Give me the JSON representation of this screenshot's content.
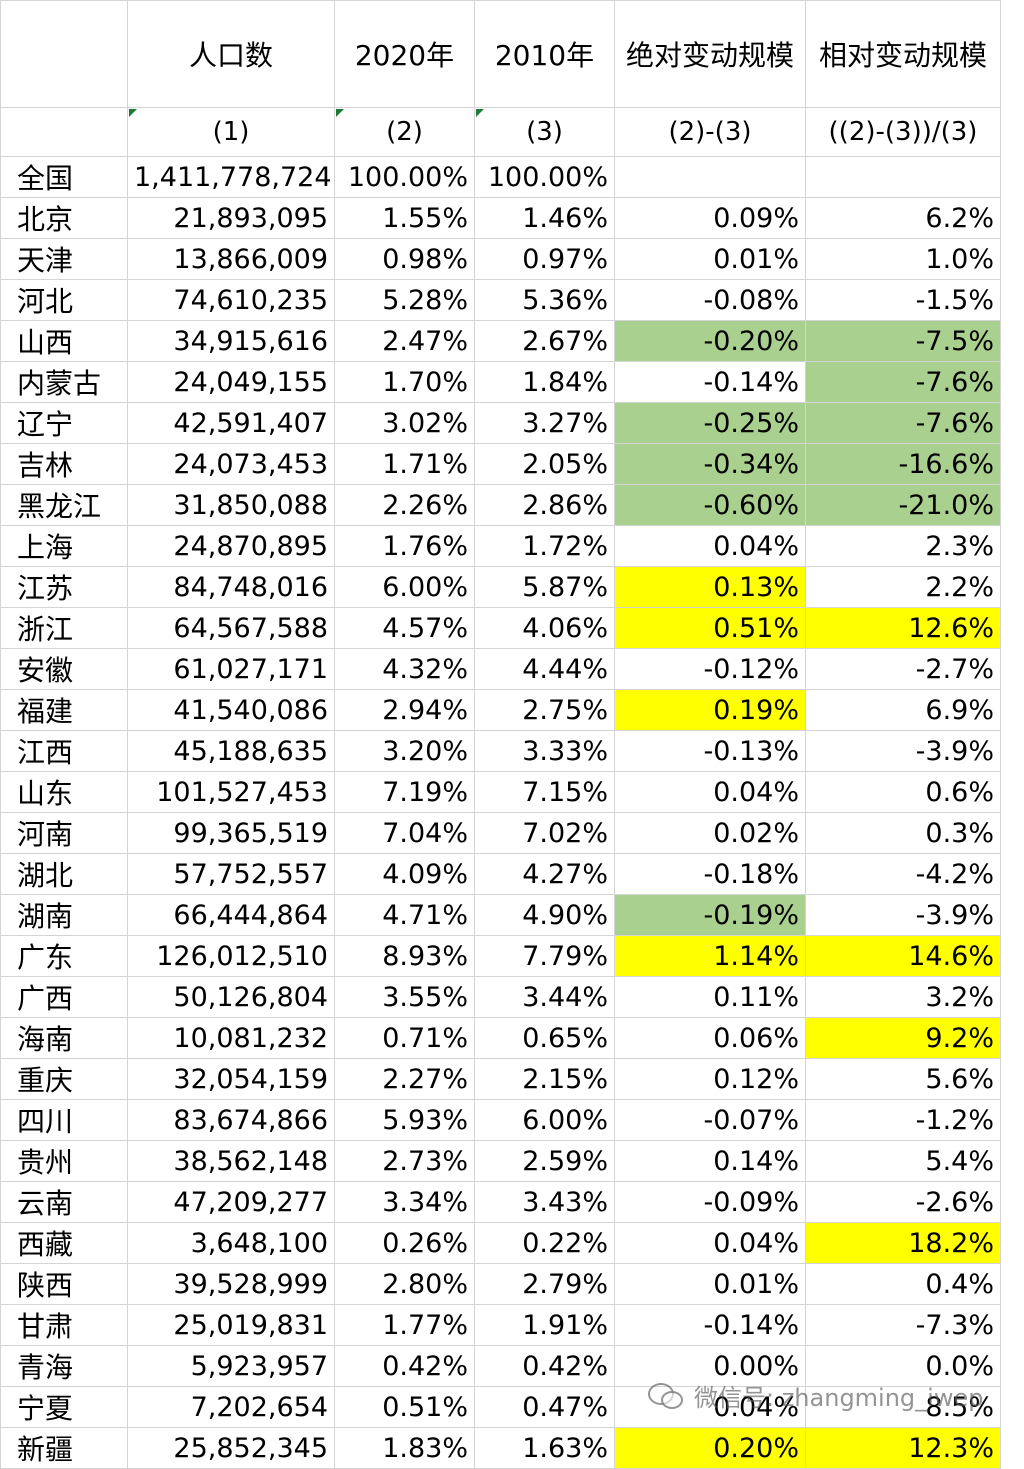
{
  "headers": {
    "titles": [
      "",
      "人口数",
      "2020年",
      "2010年",
      "绝对变动规模",
      "相对变动规模"
    ],
    "subs": [
      "",
      "(1)",
      "(2)",
      "(3)",
      "(2)-(3)",
      "((2)-(3))/(3)"
    ]
  },
  "colors": {
    "green": "#a9d08e",
    "yellow": "#ffff00",
    "gridline": "#d4d4d4"
  },
  "rows": [
    {
      "name": "全国",
      "pop": "1,411,778,724",
      "y2020": "100.00%",
      "y2010": "100.00%",
      "abs": "",
      "rel": ""
    },
    {
      "name": "北京",
      "pop": "21,893,095",
      "y2020": "1.55%",
      "y2010": "1.46%",
      "abs": "0.09%",
      "rel": "6.2%"
    },
    {
      "name": "天津",
      "pop": "13,866,009",
      "y2020": "0.98%",
      "y2010": "0.97%",
      "abs": "0.01%",
      "rel": "1.0%"
    },
    {
      "name": "河北",
      "pop": "74,610,235",
      "y2020": "5.28%",
      "y2010": "5.36%",
      "abs": "-0.08%",
      "rel": "-1.5%"
    },
    {
      "name": "山西",
      "pop": "34,915,616",
      "y2020": "2.47%",
      "y2010": "2.67%",
      "abs": "-0.20%",
      "rel": "-7.5%",
      "absHl": "green",
      "relHl": "green"
    },
    {
      "name": "内蒙古",
      "pop": "24,049,155",
      "y2020": "1.70%",
      "y2010": "1.84%",
      "abs": "-0.14%",
      "rel": "-7.6%",
      "relHl": "green"
    },
    {
      "name": "辽宁",
      "pop": "42,591,407",
      "y2020": "3.02%",
      "y2010": "3.27%",
      "abs": "-0.25%",
      "rel": "-7.6%",
      "absHl": "green",
      "relHl": "green"
    },
    {
      "name": "吉林",
      "pop": "24,073,453",
      "y2020": "1.71%",
      "y2010": "2.05%",
      "abs": "-0.34%",
      "rel": "-16.6%",
      "absHl": "green",
      "relHl": "green"
    },
    {
      "name": "黑龙江",
      "pop": "31,850,088",
      "y2020": "2.26%",
      "y2010": "2.86%",
      "abs": "-0.60%",
      "rel": "-21.0%",
      "absHl": "green",
      "relHl": "green"
    },
    {
      "name": "上海",
      "pop": "24,870,895",
      "y2020": "1.76%",
      "y2010": "1.72%",
      "abs": "0.04%",
      "rel": "2.3%"
    },
    {
      "name": "江苏",
      "pop": "84,748,016",
      "y2020": "6.00%",
      "y2010": "5.87%",
      "abs": "0.13%",
      "rel": "2.2%",
      "absHl": "yellow"
    },
    {
      "name": "浙江",
      "pop": "64,567,588",
      "y2020": "4.57%",
      "y2010": "4.06%",
      "abs": "0.51%",
      "rel": "12.6%",
      "absHl": "yellow",
      "relHl": "yellow"
    },
    {
      "name": "安徽",
      "pop": "61,027,171",
      "y2020": "4.32%",
      "y2010": "4.44%",
      "abs": "-0.12%",
      "rel": "-2.7%"
    },
    {
      "name": "福建",
      "pop": "41,540,086",
      "y2020": "2.94%",
      "y2010": "2.75%",
      "abs": "0.19%",
      "rel": "6.9%",
      "absHl": "yellow"
    },
    {
      "name": "江西",
      "pop": "45,188,635",
      "y2020": "3.20%",
      "y2010": "3.33%",
      "abs": "-0.13%",
      "rel": "-3.9%"
    },
    {
      "name": "山东",
      "pop": "101,527,453",
      "y2020": "7.19%",
      "y2010": "7.15%",
      "abs": "0.04%",
      "rel": "0.6%"
    },
    {
      "name": "河南",
      "pop": "99,365,519",
      "y2020": "7.04%",
      "y2010": "7.02%",
      "abs": "0.02%",
      "rel": "0.3%"
    },
    {
      "name": "湖北",
      "pop": "57,752,557",
      "y2020": "4.09%",
      "y2010": "4.27%",
      "abs": "-0.18%",
      "rel": "-4.2%"
    },
    {
      "name": "湖南",
      "pop": "66,444,864",
      "y2020": "4.71%",
      "y2010": "4.90%",
      "abs": "-0.19%",
      "rel": "-3.9%",
      "absHl": "green"
    },
    {
      "name": "广东",
      "pop": "126,012,510",
      "y2020": "8.93%",
      "y2010": "7.79%",
      "abs": "1.14%",
      "rel": "14.6%",
      "absHl": "yellow",
      "relHl": "yellow"
    },
    {
      "name": "广西",
      "pop": "50,126,804",
      "y2020": "3.55%",
      "y2010": "3.44%",
      "abs": "0.11%",
      "rel": "3.2%"
    },
    {
      "name": "海南",
      "pop": "10,081,232",
      "y2020": "0.71%",
      "y2010": "0.65%",
      "abs": "0.06%",
      "rel": "9.2%",
      "relHl": "yellow"
    },
    {
      "name": "重庆",
      "pop": "32,054,159",
      "y2020": "2.27%",
      "y2010": "2.15%",
      "abs": "0.12%",
      "rel": "5.6%"
    },
    {
      "name": "四川",
      "pop": "83,674,866",
      "y2020": "5.93%",
      "y2010": "6.00%",
      "abs": "-0.07%",
      "rel": "-1.2%"
    },
    {
      "name": "贵州",
      "pop": "38,562,148",
      "y2020": "2.73%",
      "y2010": "2.59%",
      "abs": "0.14%",
      "rel": "5.4%"
    },
    {
      "name": "云南",
      "pop": "47,209,277",
      "y2020": "3.34%",
      "y2010": "3.43%",
      "abs": "-0.09%",
      "rel": "-2.6%"
    },
    {
      "name": "西藏",
      "pop": "3,648,100",
      "y2020": "0.26%",
      "y2010": "0.22%",
      "abs": "0.04%",
      "rel": "18.2%",
      "relHl": "yellow"
    },
    {
      "name": "陕西",
      "pop": "39,528,999",
      "y2020": "2.80%",
      "y2010": "2.79%",
      "abs": "0.01%",
      "rel": "0.4%"
    },
    {
      "name": "甘肃",
      "pop": "25,019,831",
      "y2020": "1.77%",
      "y2010": "1.91%",
      "abs": "-0.14%",
      "rel": "-7.3%"
    },
    {
      "name": "青海",
      "pop": "5,923,957",
      "y2020": "0.42%",
      "y2010": "0.42%",
      "abs": "0.00%",
      "rel": "0.0%"
    },
    {
      "name": "宁夏",
      "pop": "7,202,654",
      "y2020": "0.51%",
      "y2010": "0.47%",
      "abs": "0.04%",
      "rel": "8.5%"
    },
    {
      "name": "新疆",
      "pop": "25,852,345",
      "y2020": "1.83%",
      "y2010": "1.63%",
      "abs": "0.20%",
      "rel": "12.3%",
      "absHl": "yellow",
      "relHl": "yellow"
    }
  ],
  "watermark": {
    "icon": "wechat-icon",
    "text": "微信号: zhangming_iwep"
  }
}
